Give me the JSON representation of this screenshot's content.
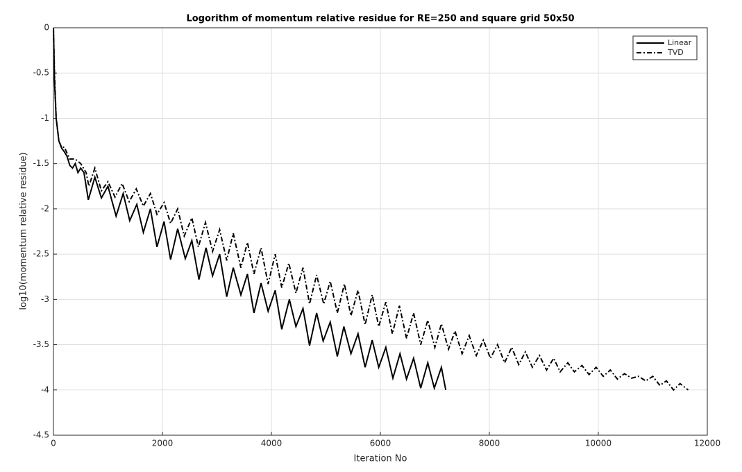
{
  "chart_data": {
    "type": "line",
    "title": "Logorithm of momentum relative residue for RE=250 and square grid 50x50",
    "x_label": "Iteration No",
    "y_label": "log10(momentum relative residue)",
    "xlim": [
      0,
      12000
    ],
    "xticks": [
      0,
      2000,
      4000,
      6000,
      8000,
      10000,
      12000
    ],
    "ylim": [
      -4.5,
      0
    ],
    "yticks": [
      -4.5,
      -4,
      -3.5,
      -3,
      -2.5,
      -2,
      -1.5,
      -1,
      -0.5,
      0
    ],
    "grid": true,
    "legend": "upper right",
    "series": [
      {
        "name": "Linear",
        "color": "#000000",
        "linestyle": "solid",
        "x": [
          0,
          20,
          50,
          100,
          150,
          200,
          250,
          300,
          350,
          400,
          450,
          500,
          560,
          640,
          760,
          880,
          1000,
          1150,
          1280,
          1400,
          1530,
          1650,
          1780,
          1900,
          2030,
          2150,
          2280,
          2420,
          2540,
          2670,
          2800,
          2920,
          3050,
          3180,
          3300,
          3440,
          3560,
          3680,
          3810,
          3940,
          4070,
          4190,
          4330,
          4450,
          4580,
          4700,
          4830,
          4950,
          5080,
          5210,
          5330,
          5460,
          5590,
          5720,
          5850,
          5970,
          6100,
          6230,
          6360,
          6480,
          6610,
          6740,
          6870,
          6990,
          7120,
          7200
        ],
        "values": [
          0,
          -0.6,
          -1.0,
          -1.25,
          -1.33,
          -1.37,
          -1.42,
          -1.52,
          -1.55,
          -1.5,
          -1.6,
          -1.55,
          -1.6,
          -1.9,
          -1.65,
          -1.88,
          -1.75,
          -2.08,
          -1.83,
          -2.13,
          -1.95,
          -2.26,
          -2.0,
          -2.42,
          -2.14,
          -2.56,
          -2.22,
          -2.55,
          -2.35,
          -2.78,
          -2.43,
          -2.74,
          -2.5,
          -2.97,
          -2.65,
          -2.95,
          -2.72,
          -3.15,
          -2.82,
          -3.13,
          -2.9,
          -3.33,
          -3.0,
          -3.3,
          -3.1,
          -3.51,
          -3.15,
          -3.46,
          -3.25,
          -3.63,
          -3.3,
          -3.6,
          -3.38,
          -3.75,
          -3.45,
          -3.75,
          -3.53,
          -3.87,
          -3.6,
          -3.88,
          -3.65,
          -3.98,
          -3.7,
          -3.98,
          -3.75,
          -4.0
        ]
      },
      {
        "name": "TVD",
        "color": "#000000",
        "linestyle": "dashdot",
        "x": [
          0,
          20,
          50,
          100,
          150,
          200,
          300,
          400,
          500,
          600,
          650,
          760,
          880,
          1000,
          1130,
          1260,
          1390,
          1520,
          1650,
          1780,
          1900,
          2030,
          2150,
          2280,
          2400,
          2540,
          2660,
          2790,
          2920,
          3050,
          3180,
          3300,
          3440,
          3560,
          3680,
          3810,
          3940,
          4070,
          4190,
          4320,
          4450,
          4580,
          4700,
          4830,
          4960,
          5080,
          5210,
          5340,
          5460,
          5590,
          5720,
          5850,
          5970,
          6100,
          6220,
          6350,
          6480,
          6610,
          6740,
          6870,
          7000,
          7120,
          7250,
          7370,
          7500,
          7630,
          7760,
          7890,
          8020,
          8150,
          8280,
          8410,
          8540,
          8660,
          8790,
          8920,
          9050,
          9180,
          9300,
          9440,
          9560,
          9700,
          9830,
          9960,
          10090,
          10220,
          10350,
          10480,
          10610,
          10740,
          10870,
          11000,
          11130,
          11250,
          11380,
          11500,
          11650
        ],
        "values": [
          0,
          -0.5,
          -1.0,
          -1.25,
          -1.32,
          -1.32,
          -1.45,
          -1.45,
          -1.5,
          -1.6,
          -1.75,
          -1.55,
          -1.8,
          -1.7,
          -1.87,
          -1.72,
          -1.92,
          -1.78,
          -1.97,
          -1.83,
          -2.06,
          -1.93,
          -2.16,
          -2.0,
          -2.3,
          -2.1,
          -2.42,
          -2.15,
          -2.47,
          -2.23,
          -2.57,
          -2.27,
          -2.65,
          -2.37,
          -2.72,
          -2.43,
          -2.83,
          -2.5,
          -2.87,
          -2.6,
          -2.93,
          -2.65,
          -3.05,
          -2.73,
          -3.05,
          -2.8,
          -3.15,
          -2.83,
          -3.18,
          -2.9,
          -3.28,
          -2.95,
          -3.3,
          -3.03,
          -3.38,
          -3.07,
          -3.43,
          -3.15,
          -3.5,
          -3.23,
          -3.53,
          -3.27,
          -3.55,
          -3.35,
          -3.6,
          -3.4,
          -3.62,
          -3.45,
          -3.65,
          -3.5,
          -3.7,
          -3.53,
          -3.72,
          -3.58,
          -3.75,
          -3.62,
          -3.78,
          -3.65,
          -3.8,
          -3.7,
          -3.8,
          -3.73,
          -3.83,
          -3.75,
          -3.85,
          -3.78,
          -3.88,
          -3.82,
          -3.87,
          -3.85,
          -3.9,
          -3.85,
          -3.95,
          -3.9,
          -4.0,
          -3.93,
          -4.0
        ]
      }
    ]
  }
}
